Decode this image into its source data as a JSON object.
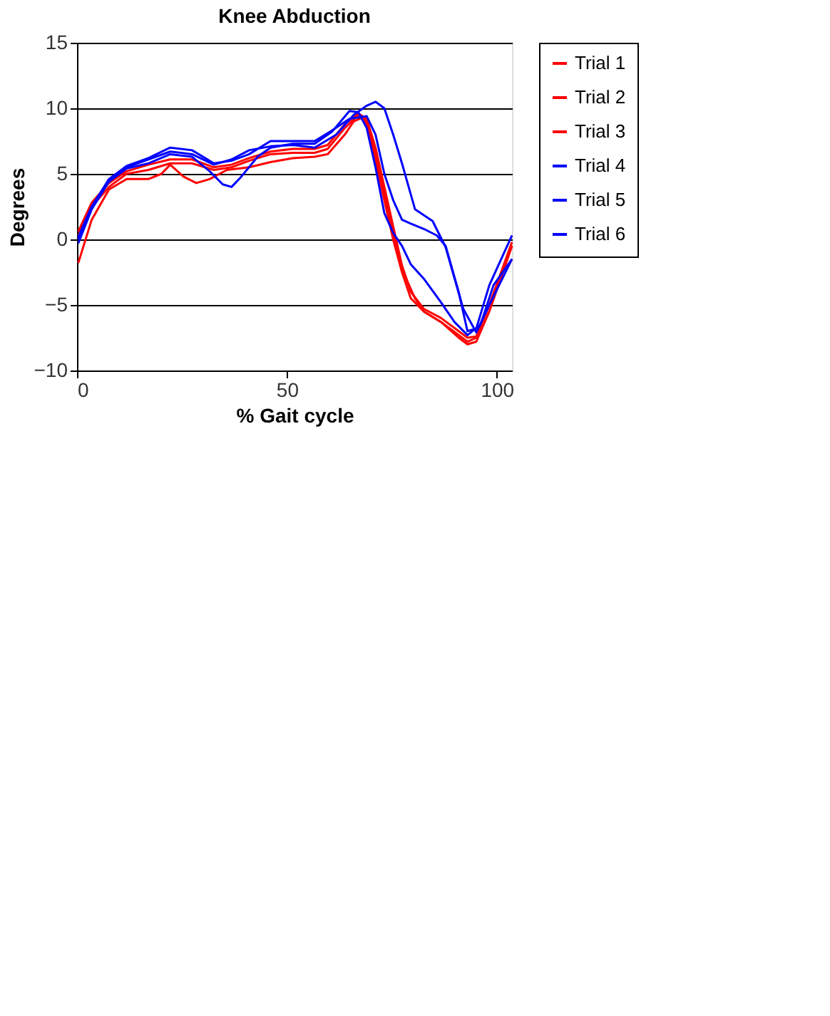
{
  "chart_data": {
    "type": "line",
    "title": "Knee Abduction",
    "xlabel": "% Gait cycle",
    "ylabel": "Degrees",
    "xlim": [
      0,
      103.6
    ],
    "xticks": [
      0,
      50,
      100
    ],
    "ylim": [
      -10,
      15
    ],
    "yticks": [
      -10,
      -5,
      0,
      5,
      10,
      15
    ],
    "grid": "y",
    "legend": "right",
    "marker": "none",
    "line_style": "solid",
    "series": [
      {
        "name": "Trial 1",
        "color": "#ff0000",
        "x": [
          0.3,
          3.5,
          7.6,
          11.8,
          17,
          20.1,
          22.2,
          25.3,
          28.4,
          31.6,
          35.7,
          41,
          46.1,
          51.4,
          56.6,
          59.7,
          63.8,
          65.9,
          68,
          70.1,
          72.2,
          74.3,
          76.3,
          78.4,
          80.5,
          82.6,
          86.7,
          90.9,
          93,
          95.1,
          98.2,
          103.6
        ],
        "values": [
          -1.8,
          1.5,
          3.8,
          4.6,
          4.6,
          5,
          5.7,
          4.8,
          4.3,
          4.6,
          5.3,
          5.5,
          5.9,
          6.2,
          6.3,
          6.5,
          8,
          9,
          9.3,
          8,
          5,
          2,
          -1,
          -3,
          -4.5,
          -5.5,
          -6.3,
          -7.5,
          -8,
          -7.8,
          -5.5,
          -0.5
        ]
      },
      {
        "name": "Trial 2",
        "color": "#ff0000",
        "x": [
          0.3,
          3.5,
          7.6,
          11.8,
          17,
          22.2,
          27.4,
          32.6,
          36.8,
          41,
          46.1,
          51.4,
          56.6,
          59.7,
          63.8,
          67,
          69,
          71.1,
          73.2,
          75.3,
          77.4,
          79.5,
          82.6,
          86.7,
          90.9,
          93,
          95.1,
          98.2,
          103.6
        ],
        "values": [
          0.3,
          2.5,
          4,
          5,
          5.3,
          5.8,
          5.8,
          5.3,
          5.5,
          6,
          6.5,
          6.6,
          6.6,
          6.9,
          8.5,
          9.5,
          9,
          6,
          3,
          0,
          -2.5,
          -4.5,
          -5.5,
          -6.3,
          -7.3,
          -7.8,
          -7.5,
          -5,
          -0.2
        ]
      },
      {
        "name": "Trial 3",
        "color": "#ff0000",
        "x": [
          0.3,
          3.5,
          7.6,
          11.8,
          17,
          22.2,
          27.4,
          32.6,
          36.8,
          41,
          46.1,
          51.4,
          56.6,
          59.7,
          63.8,
          67,
          69,
          71.1,
          73.2,
          75.3,
          77.4,
          79.5,
          82.6,
          86.7,
          90.9,
          93,
          95.1,
          98.2,
          103.6
        ],
        "values": [
          0.6,
          2.8,
          4.3,
          5.2,
          5.7,
          6.1,
          6.1,
          5.5,
          5.7,
          6.2,
          6.7,
          6.9,
          6.9,
          7.2,
          8.8,
          9.6,
          9.2,
          7,
          4,
          1,
          -2,
          -4,
          -5.3,
          -6,
          -7,
          -7.5,
          -7.4,
          -5,
          -0.5
        ]
      },
      {
        "name": "Trial 4",
        "color": "#0000ff",
        "x": [
          0.3,
          3.5,
          7.6,
          11.8,
          17,
          22.2,
          27.4,
          31.6,
          34.7,
          36.8,
          38.9,
          43,
          46.1,
          51.4,
          56.6,
          60.7,
          64.9,
          67,
          69,
          71.1,
          73.2,
          75.3,
          77.4,
          79.5,
          82.6,
          86.7,
          89.9,
          93,
          96.1,
          99.2,
          103.6
        ],
        "values": [
          -0.3,
          2.3,
          4.4,
          5.4,
          5.8,
          6.5,
          6.3,
          5.2,
          4.2,
          4,
          4.7,
          6.3,
          7,
          7.3,
          7.3,
          8.2,
          9.8,
          9.7,
          8.5,
          5.5,
          2,
          0.5,
          -0.5,
          -1.9,
          -3,
          -4.8,
          -6.3,
          -7.3,
          -6.5,
          -3.5,
          -1.5
        ]
      },
      {
        "name": "Trial 5",
        "color": "#0000ff",
        "x": [
          0.3,
          3.5,
          7.6,
          11.8,
          17,
          22.2,
          27.4,
          32.6,
          36.8,
          41,
          46.1,
          51.4,
          56.6,
          60.7,
          64.9,
          69,
          71.1,
          73.2,
          75.3,
          77.4,
          79.5,
          82.6,
          85.7,
          87.8,
          90.9,
          93,
          95.1,
          98.2,
          103.6
        ],
        "values": [
          0,
          2.5,
          4.6,
          5.6,
          6.2,
          7,
          6.8,
          5.8,
          6,
          6.5,
          7.5,
          7.5,
          7.5,
          8.3,
          9.2,
          9.4,
          8,
          5,
          3,
          1.5,
          1.2,
          0.8,
          0.3,
          -0.5,
          -4,
          -7,
          -6.8,
          -3.5,
          0.3
        ]
      },
      {
        "name": "Trial 6",
        "color": "#0000ff",
        "x": [
          0.3,
          3.5,
          7.6,
          11.8,
          17,
          22.2,
          27.4,
          32.6,
          36.8,
          41,
          46.1,
          51.4,
          56.6,
          61.8,
          65.9,
          69,
          71.1,
          73.2,
          75.3,
          77.4,
          80.5,
          84.7,
          87.8,
          92,
          95.1,
          98.2,
          103.6
        ],
        "values": [
          0.2,
          2.5,
          4.5,
          5.5,
          6.1,
          6.7,
          6.5,
          5.7,
          6.1,
          6.8,
          7.1,
          7.2,
          7,
          8,
          9.5,
          10.2,
          10.5,
          10,
          8,
          5.8,
          2.3,
          1.4,
          -0.6,
          -5.3,
          -7.1,
          -5,
          -1.5
        ]
      }
    ]
  }
}
